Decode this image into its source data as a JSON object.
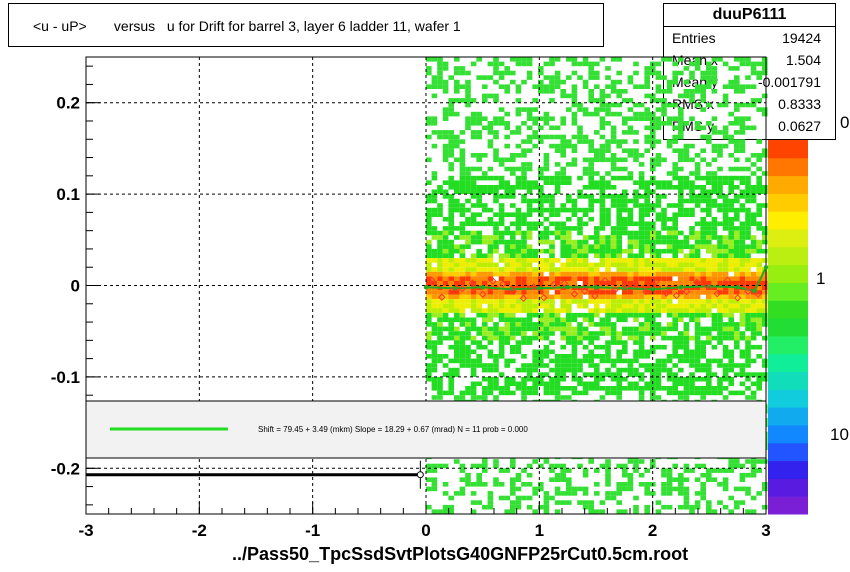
{
  "title": "<u - uP>       versus   u for Drift for barrel 3, layer 6 ladder 11, wafer 1",
  "stats": {
    "name": "duuP6111",
    "rows": [
      {
        "key": "Entries",
        "value": "19424"
      },
      {
        "key": "Mean x",
        "value": "1.504"
      },
      {
        "key": "Mean y",
        "value": "-0.001791"
      },
      {
        "key": "RMS x",
        "value": "0.8333"
      },
      {
        "key": "RMS y",
        "value": "0.0627"
      }
    ]
  },
  "fit_text": "Shift =    79.45 + 3.49 (mkm) Slope =    18.29 + 0.67 (mrad)  N = 11 prob = 0.000",
  "footer": "../Pass50_TpcSsdSvtPlotsG40GNFP25rCut0.5cm.root",
  "colors": {
    "fit_line": "#22dd22",
    "profile_markers": "#ff3333",
    "profile_line": "#22aa22"
  },
  "chart_data": {
    "type": "heatmap",
    "xlim": [
      -3,
      3
    ],
    "ylim": [
      -0.25,
      0.25
    ],
    "x_ticks": [
      "-3",
      "-2",
      "-1",
      "0",
      "1",
      "2",
      "3"
    ],
    "y_ticks": [
      "-0.2",
      "-0.1",
      "0",
      "0.1",
      "0.2"
    ],
    "grid": true,
    "data_x_range": [
      0,
      3
    ],
    "colorbar_labels": [
      "10",
      "1",
      "0"
    ],
    "profile": {
      "x": [
        0.0,
        0.25,
        0.5,
        0.75,
        1.0,
        1.25,
        1.5,
        1.75,
        2.0,
        2.25,
        2.5,
        2.75,
        2.9,
        3.0
      ],
      "y": [
        -0.002,
        -0.003,
        -0.002,
        -0.004,
        -0.003,
        -0.002,
        -0.002,
        -0.003,
        -0.004,
        -0.002,
        -0.001,
        -0.002,
        -0.006,
        0.02
      ]
    },
    "left_marker": {
      "x": -0.05,
      "y": -0.207
    }
  }
}
